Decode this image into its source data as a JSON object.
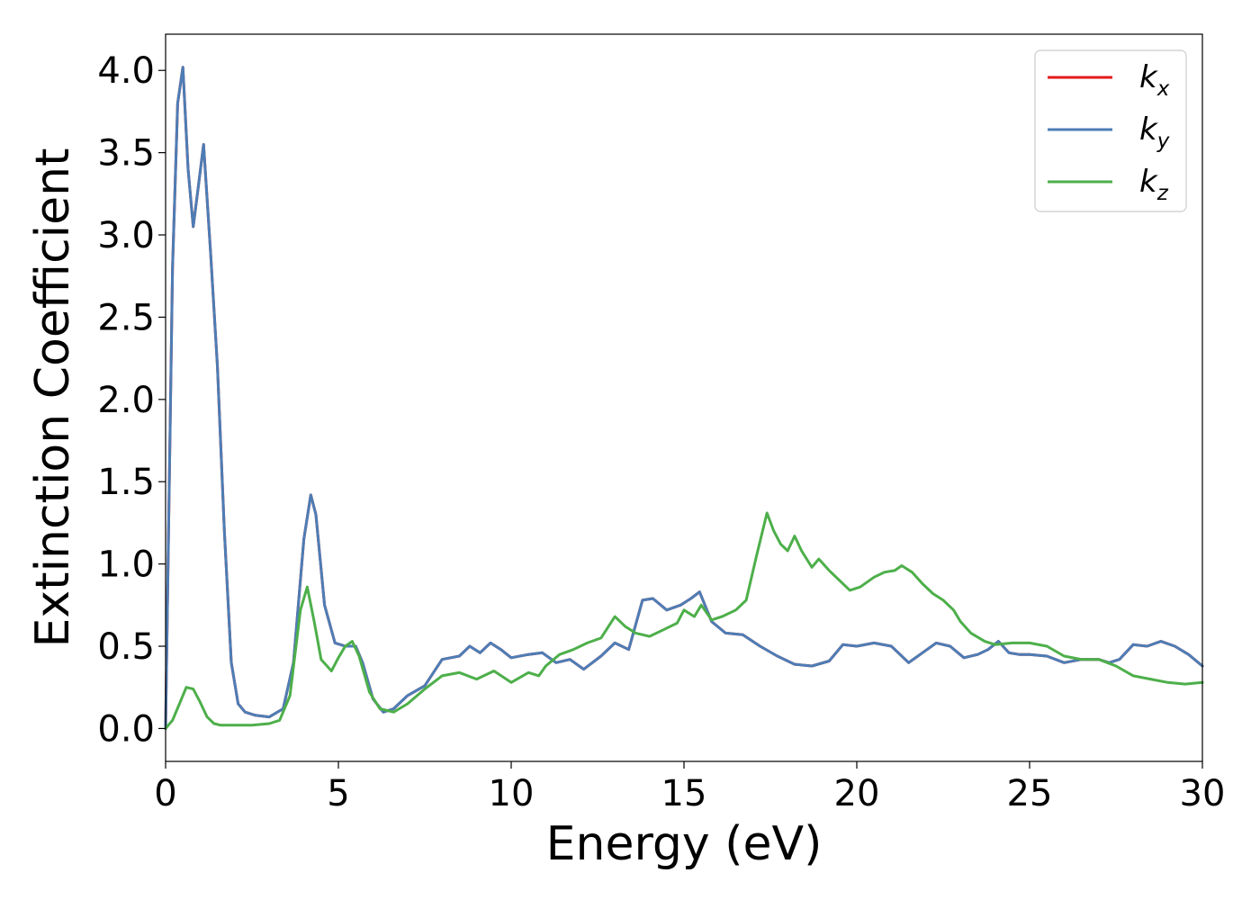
{
  "chart_data": {
    "type": "line",
    "title": "",
    "xlabel": "Energy (eV)",
    "ylabel": "Extinction Coefficient",
    "xlim": [
      0,
      30
    ],
    "ylim": [
      -0.2,
      4.22
    ],
    "xticks": [
      0,
      5,
      10,
      15,
      20,
      25,
      30
    ],
    "xtick_labels": [
      "0",
      "5",
      "10",
      "15",
      "20",
      "25",
      "30"
    ],
    "yticks": [
      0.0,
      0.5,
      1.0,
      1.5,
      2.0,
      2.5,
      3.0,
      3.5,
      4.0
    ],
    "ytick_labels": [
      "0.0",
      "0.5",
      "1.0",
      "1.5",
      "2.0",
      "2.5",
      "3.0",
      "3.5",
      "4.0"
    ],
    "grid": false,
    "legend_position": "top-right",
    "series": [
      {
        "name": "k",
        "sub": "x",
        "color": "#e41a1c",
        "x": [
          0,
          0.2,
          0.35,
          0.5,
          0.65,
          0.8,
          0.95,
          1.1,
          1.3,
          1.5,
          1.7,
          1.9,
          2.1,
          2.3,
          2.6,
          3.0,
          3.4,
          3.7,
          4.0,
          4.2,
          4.35,
          4.6,
          4.9,
          5.2,
          5.5,
          5.7,
          6.0,
          6.3,
          6.6,
          7.0,
          7.5,
          8.0,
          8.5,
          8.8,
          9.1,
          9.4,
          9.7,
          10.0,
          10.5,
          10.9,
          11.3,
          11.7,
          12.1,
          12.6,
          13.0,
          13.4,
          13.8,
          14.1,
          14.5,
          14.9,
          15.2,
          15.45,
          15.8,
          16.2,
          16.7,
          17.2,
          17.7,
          18.2,
          18.7,
          19.2,
          19.6,
          20.0,
          20.5,
          21.0,
          21.5,
          21.9,
          22.3,
          22.7,
          23.1,
          23.5,
          23.8,
          24.1,
          24.4,
          24.7,
          25.0,
          25.5,
          26.0,
          26.5,
          27.0,
          27.3,
          27.6,
          28.0,
          28.4,
          28.8,
          29.2,
          29.6,
          30.0
        ],
        "y": [
          0.0,
          2.8,
          3.8,
          4.02,
          3.4,
          3.05,
          3.3,
          3.55,
          2.9,
          2.2,
          1.2,
          0.4,
          0.15,
          0.1,
          0.08,
          0.07,
          0.12,
          0.4,
          1.15,
          1.42,
          1.3,
          0.75,
          0.52,
          0.5,
          0.5,
          0.4,
          0.18,
          0.1,
          0.12,
          0.2,
          0.26,
          0.42,
          0.44,
          0.5,
          0.46,
          0.52,
          0.48,
          0.43,
          0.45,
          0.46,
          0.4,
          0.42,
          0.36,
          0.44,
          0.52,
          0.48,
          0.78,
          0.79,
          0.72,
          0.75,
          0.79,
          0.83,
          0.65,
          0.58,
          0.57,
          0.5,
          0.44,
          0.39,
          0.38,
          0.41,
          0.51,
          0.5,
          0.52,
          0.5,
          0.4,
          0.46,
          0.52,
          0.5,
          0.43,
          0.45,
          0.48,
          0.53,
          0.46,
          0.45,
          0.45,
          0.44,
          0.4,
          0.42,
          0.42,
          0.4,
          0.42,
          0.51,
          0.5,
          0.53,
          0.5,
          0.45,
          0.38
        ]
      },
      {
        "name": "k",
        "sub": "y",
        "color": "#4d7db5",
        "x": [
          0,
          0.2,
          0.35,
          0.5,
          0.65,
          0.8,
          0.95,
          1.1,
          1.3,
          1.5,
          1.7,
          1.9,
          2.1,
          2.3,
          2.6,
          3.0,
          3.4,
          3.7,
          4.0,
          4.2,
          4.35,
          4.6,
          4.9,
          5.2,
          5.5,
          5.7,
          6.0,
          6.3,
          6.6,
          7.0,
          7.5,
          8.0,
          8.5,
          8.8,
          9.1,
          9.4,
          9.7,
          10.0,
          10.5,
          10.9,
          11.3,
          11.7,
          12.1,
          12.6,
          13.0,
          13.4,
          13.8,
          14.1,
          14.5,
          14.9,
          15.2,
          15.45,
          15.8,
          16.2,
          16.7,
          17.2,
          17.7,
          18.2,
          18.7,
          19.2,
          19.6,
          20.0,
          20.5,
          21.0,
          21.5,
          21.9,
          22.3,
          22.7,
          23.1,
          23.5,
          23.8,
          24.1,
          24.4,
          24.7,
          25.0,
          25.5,
          26.0,
          26.5,
          27.0,
          27.3,
          27.6,
          28.0,
          28.4,
          28.8,
          29.2,
          29.6,
          30.0
        ],
        "y": [
          0.0,
          2.8,
          3.8,
          4.02,
          3.4,
          3.05,
          3.3,
          3.55,
          2.9,
          2.2,
          1.2,
          0.4,
          0.15,
          0.1,
          0.08,
          0.07,
          0.12,
          0.4,
          1.15,
          1.42,
          1.3,
          0.75,
          0.52,
          0.5,
          0.5,
          0.4,
          0.18,
          0.1,
          0.12,
          0.2,
          0.26,
          0.42,
          0.44,
          0.5,
          0.46,
          0.52,
          0.48,
          0.43,
          0.45,
          0.46,
          0.4,
          0.42,
          0.36,
          0.44,
          0.52,
          0.48,
          0.78,
          0.79,
          0.72,
          0.75,
          0.79,
          0.83,
          0.65,
          0.58,
          0.57,
          0.5,
          0.44,
          0.39,
          0.38,
          0.41,
          0.51,
          0.5,
          0.52,
          0.5,
          0.4,
          0.46,
          0.52,
          0.5,
          0.43,
          0.45,
          0.48,
          0.53,
          0.46,
          0.45,
          0.45,
          0.44,
          0.4,
          0.42,
          0.42,
          0.4,
          0.42,
          0.51,
          0.5,
          0.53,
          0.5,
          0.45,
          0.38
        ]
      },
      {
        "name": "k",
        "sub": "z",
        "color": "#4daf4a",
        "x": [
          0,
          0.2,
          0.4,
          0.6,
          0.8,
          1.0,
          1.2,
          1.4,
          1.6,
          2.0,
          2.5,
          3.0,
          3.3,
          3.6,
          3.9,
          4.1,
          4.3,
          4.5,
          4.8,
          5.0,
          5.2,
          5.4,
          5.6,
          5.9,
          6.2,
          6.6,
          7.0,
          7.5,
          8.0,
          8.5,
          9.0,
          9.5,
          10.0,
          10.5,
          10.8,
          11.0,
          11.4,
          11.8,
          12.2,
          12.6,
          13.0,
          13.3,
          13.6,
          14.0,
          14.4,
          14.8,
          15.0,
          15.3,
          15.5,
          15.8,
          16.1,
          16.5,
          16.8,
          17.1,
          17.4,
          17.6,
          17.8,
          18.0,
          18.2,
          18.4,
          18.7,
          18.9,
          19.2,
          19.5,
          19.8,
          20.1,
          20.5,
          20.8,
          21.1,
          21.3,
          21.6,
          21.9,
          22.2,
          22.5,
          22.8,
          23.0,
          23.3,
          23.7,
          24.0,
          24.5,
          25.0,
          25.5,
          26.0,
          26.5,
          27.0,
          27.5,
          28.0,
          28.5,
          29.0,
          29.5,
          30.0
        ],
        "y": [
          0.0,
          0.05,
          0.15,
          0.25,
          0.24,
          0.16,
          0.07,
          0.03,
          0.02,
          0.02,
          0.02,
          0.03,
          0.05,
          0.2,
          0.72,
          0.86,
          0.65,
          0.42,
          0.35,
          0.43,
          0.5,
          0.53,
          0.44,
          0.22,
          0.12,
          0.1,
          0.15,
          0.24,
          0.32,
          0.34,
          0.3,
          0.35,
          0.28,
          0.34,
          0.32,
          0.38,
          0.45,
          0.48,
          0.52,
          0.55,
          0.68,
          0.62,
          0.58,
          0.56,
          0.6,
          0.64,
          0.72,
          0.68,
          0.75,
          0.66,
          0.68,
          0.72,
          0.78,
          1.05,
          1.31,
          1.2,
          1.12,
          1.08,
          1.17,
          1.08,
          0.98,
          1.03,
          0.96,
          0.9,
          0.84,
          0.86,
          0.92,
          0.95,
          0.96,
          0.99,
          0.95,
          0.88,
          0.82,
          0.78,
          0.72,
          0.65,
          0.58,
          0.53,
          0.51,
          0.52,
          0.52,
          0.5,
          0.44,
          0.42,
          0.42,
          0.38,
          0.32,
          0.3,
          0.28,
          0.27,
          0.28
        ]
      }
    ]
  }
}
